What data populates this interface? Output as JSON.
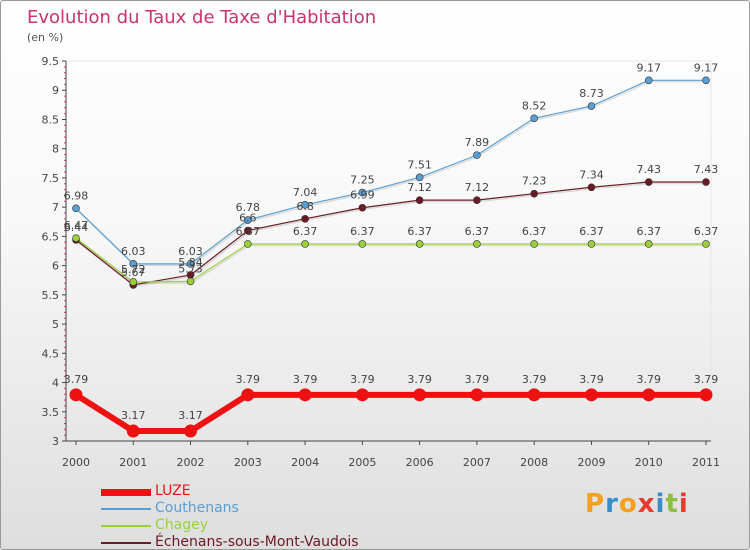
{
  "header": {
    "title": "Evolution du Taux de Taxe d'Habitation",
    "unit": "(en %)"
  },
  "logo": {
    "text": "Proxiti",
    "colors": [
      "#f2a01e",
      "#3a8ec8",
      "#f2a01e",
      "#e83b2f",
      "#3a8ec8",
      "#8cbf3f",
      "#e83b2f"
    ]
  },
  "colors": {
    "title": "#c8336f",
    "axis": "#444444",
    "grid_frame": "#e6e6e6"
  },
  "chart_data": {
    "type": "line",
    "title": "Evolution du Taux de Taxe d'Habitation",
    "ylabel": "(en %)",
    "xlabel": "",
    "x": [
      "2000",
      "2001",
      "2002",
      "2003",
      "2004",
      "2005",
      "2006",
      "2007",
      "2008",
      "2009",
      "2010",
      "2011"
    ],
    "ylim": [
      3,
      9.5
    ],
    "yticks": [
      "3",
      "3.5",
      "4",
      "4.5",
      "5",
      "5.5",
      "6",
      "6.5",
      "7",
      "7.5",
      "8",
      "8.5",
      "9",
      "9.5"
    ],
    "grid": false,
    "legend_position": "bottom-left",
    "series": [
      {
        "name": "LUZE",
        "color": "#ee1111",
        "thick": true,
        "values": [
          3.79,
          3.17,
          3.17,
          3.79,
          3.79,
          3.79,
          3.79,
          3.79,
          3.79,
          3.79,
          3.79,
          3.79
        ],
        "labels": [
          "3.79",
          "3.17",
          "3.17",
          "3.79",
          "3.79",
          "3.79",
          "3.79",
          "3.79",
          "3.79",
          "3.79",
          "3.79",
          "3.79"
        ]
      },
      {
        "name": "Couthenans",
        "color": "#5a9fd4",
        "thick": false,
        "values": [
          6.98,
          6.03,
          6.03,
          6.78,
          7.04,
          7.25,
          7.51,
          7.89,
          8.52,
          8.73,
          9.17,
          9.17
        ],
        "labels": [
          "6.98",
          "6.03",
          "6.03",
          "6.78",
          "7.04",
          "7.25",
          "7.51",
          "7.89",
          "8.52",
          "8.73",
          "9.17",
          "9.17"
        ]
      },
      {
        "name": "Chagey",
        "color": "#9ad13a",
        "thick": false,
        "values": [
          6.47,
          5.72,
          5.73,
          6.37,
          6.37,
          6.37,
          6.37,
          6.37,
          6.37,
          6.37,
          6.37,
          6.37
        ],
        "labels": [
          "6.47",
          "5.72",
          "5.73",
          "6.37",
          "6.37",
          "6.37",
          "6.37",
          "6.37",
          "6.37",
          "6.37",
          "6.37",
          "6.37"
        ]
      },
      {
        "name": "Échenans-sous-Mont-Vaudois",
        "color": "#6b1a24",
        "thick": false,
        "values": [
          6.44,
          5.67,
          5.84,
          6.6,
          6.8,
          6.99,
          7.12,
          7.12,
          7.23,
          7.34,
          7.43,
          7.43
        ],
        "labels": [
          "6.44",
          "5.67",
          "5.84",
          "6.6",
          "6.8",
          "6.99",
          "7.12",
          "7.12",
          "7.23",
          "7.34",
          "7.43",
          "7.43"
        ]
      }
    ]
  }
}
